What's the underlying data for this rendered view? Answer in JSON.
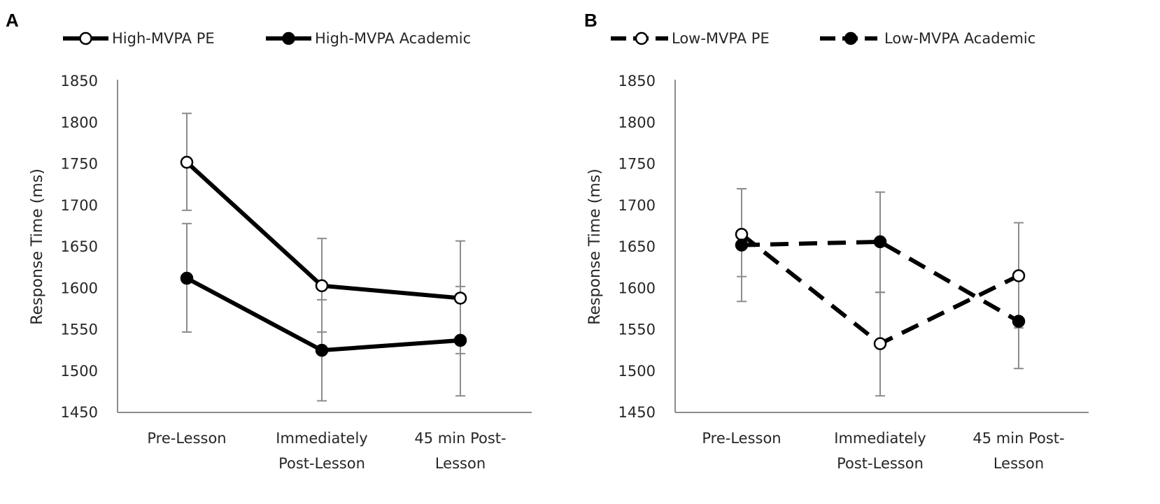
{
  "chart_data": [
    {
      "type": "line",
      "panel": "A",
      "categories": [
        [
          "Pre-Lesson"
        ],
        [
          "Immediately",
          "Post-Lesson"
        ],
        [
          "45 min Post-",
          "Lesson"
        ]
      ],
      "ylabel": "Response Time (ms)",
      "xlabel": "",
      "ylim": [
        1450,
        1850
      ],
      "yticks": [
        1450,
        1500,
        1550,
        1600,
        1650,
        1700,
        1750,
        1800,
        1850
      ],
      "legend_position": "top",
      "grid": false,
      "series": [
        {
          "name": "High-MVPA PE",
          "marker": "open-circle",
          "line_style": "solid",
          "values": [
            1752,
            1603,
            1588
          ],
          "err_low": [
            1694,
            1547,
            1521
          ],
          "err_high": [
            1811,
            1660,
            1657
          ]
        },
        {
          "name": "High-MVPA Academic",
          "marker": "filled-circle",
          "line_style": "solid",
          "values": [
            1612,
            1525,
            1537
          ],
          "err_low": [
            1547,
            1464,
            1470
          ],
          "err_high": [
            1678,
            1586,
            1602
          ]
        }
      ]
    },
    {
      "type": "line",
      "panel": "B",
      "categories": [
        [
          "Pre-Lesson"
        ],
        [
          "Immediately",
          "Post-Lesson"
        ],
        [
          "45 min Post-",
          "Lesson"
        ]
      ],
      "ylabel": "Response Time (ms)",
      "xlabel": "",
      "ylim": [
        1450,
        1850
      ],
      "yticks": [
        1450,
        1500,
        1550,
        1600,
        1650,
        1700,
        1750,
        1800,
        1850
      ],
      "legend_position": "top",
      "grid": false,
      "series": [
        {
          "name": "Low-MVPA PE",
          "marker": "open-circle",
          "line_style": "dashed",
          "values": [
            1665,
            1533,
            1615
          ],
          "err_low": [
            1614,
            1470,
            1552
          ],
          "err_high": [
            1720,
            1595,
            1679
          ]
        },
        {
          "name": "Low-MVPA Academic",
          "marker": "filled-circle",
          "line_style": "dashed",
          "values": [
            1652,
            1656,
            1560
          ],
          "err_low": [
            1584,
            1595,
            1503
          ],
          "err_high": [
            1720,
            1716,
            1616
          ]
        }
      ]
    }
  ]
}
